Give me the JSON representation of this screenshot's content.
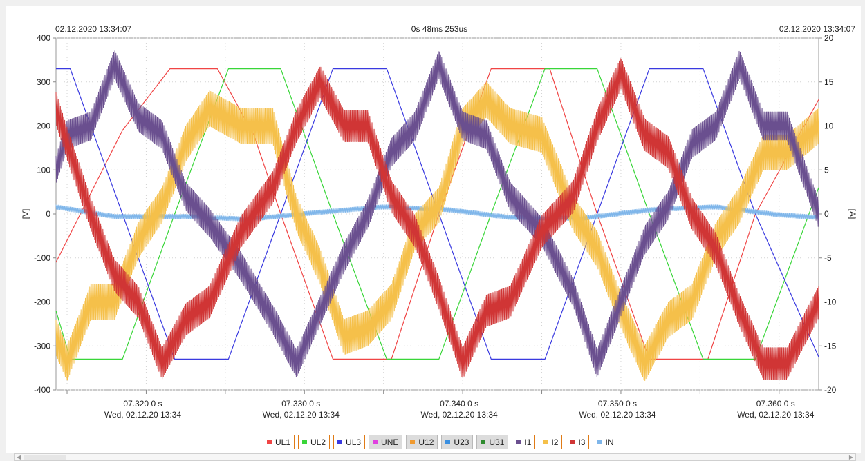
{
  "header": {
    "left_timestamp": "02.12.2020 13:34:07",
    "center_duration": "0s 48ms 253us",
    "right_timestamp": "02.12.2020 13:34:07"
  },
  "chart_data": {
    "type": "line",
    "xlim": [
      7.3143,
      7.3625
    ],
    "ylim_left": [
      -400,
      400
    ],
    "ylim_right": [
      -20,
      20
    ],
    "ylabel_left": "[V]",
    "ylabel_right": "[A]",
    "yticks_left": [
      "400",
      "300",
      "200",
      "100",
      "0",
      "-100",
      "-200",
      "-300",
      "-400"
    ],
    "yticks_right": [
      "20",
      "15",
      "10",
      "5",
      "0",
      "-5",
      "-10",
      "-15",
      "-20"
    ],
    "xticks": [
      {
        "x": 7.32,
        "line1": "07.320   0 s",
        "line2": "Wed, 02.12.20 13:34"
      },
      {
        "x": 7.33,
        "line1": "07.330   0 s",
        "line2": "Wed, 02.12.20 13:34"
      },
      {
        "x": 7.34,
        "line1": "07.340   0 s",
        "line2": "Wed, 02.12.20 13:34"
      },
      {
        "x": 7.35,
        "line1": "07.350   0 s",
        "line2": "Wed, 02.12.20 13:34"
      },
      {
        "x": 7.36,
        "line1": "07.360   0 s",
        "line2": "Wed, 02.12.20 13:34"
      }
    ],
    "grid": true,
    "series": [
      {
        "name": "UL1",
        "color": "#f04545",
        "axis": "left",
        "visible": true,
        "x": [
          7.3143,
          7.3185,
          7.3215,
          7.3245,
          7.3268,
          7.3285,
          7.3318,
          7.3355,
          7.3385,
          7.3418,
          7.3455,
          7.3485,
          7.3518,
          7.3555,
          7.3585,
          7.3625
        ],
        "y": [
          -110,
          190,
          330,
          330,
          180,
          0,
          -330,
          -330,
          0,
          330,
          330,
          0,
          -330,
          -330,
          0,
          260
        ]
      },
      {
        "name": "UL2",
        "color": "#39d639",
        "axis": "left",
        "visible": true,
        "x": [
          7.3143,
          7.3152,
          7.3185,
          7.3218,
          7.3252,
          7.3285,
          7.3318,
          7.3352,
          7.3385,
          7.3418,
          7.3452,
          7.3485,
          7.3518,
          7.3552,
          7.3585,
          7.3625
        ],
        "y": [
          -220,
          -330,
          -330,
          0,
          330,
          330,
          0,
          -330,
          -330,
          0,
          330,
          330,
          0,
          -330,
          -330,
          60
        ]
      },
      {
        "name": "UL3",
        "color": "#3a3ae0",
        "axis": "left",
        "visible": true,
        "x": [
          7.3143,
          7.3152,
          7.3185,
          7.3218,
          7.3252,
          7.3285,
          7.3318,
          7.3352,
          7.3385,
          7.3418,
          7.3452,
          7.3485,
          7.3518,
          7.3552,
          7.3585,
          7.3625
        ],
        "y": [
          330,
          330,
          0,
          -330,
          -330,
          0,
          330,
          330,
          0,
          -330,
          -330,
          0,
          330,
          330,
          0,
          -325
        ]
      },
      {
        "name": "UNE",
        "color": "#e040e0",
        "axis": "left",
        "visible": false,
        "x": [],
        "y": []
      },
      {
        "name": "U12",
        "color": "#f09a30",
        "axis": "left",
        "visible": false,
        "x": [],
        "y": []
      },
      {
        "name": "U23",
        "color": "#3a8fe0",
        "axis": "left",
        "visible": false,
        "x": [],
        "y": []
      },
      {
        "name": "U31",
        "color": "#2e8b2e",
        "axis": "left",
        "visible": false,
        "x": [],
        "y": []
      },
      {
        "name": "I1",
        "color": "#6a4f8f",
        "axis": "right",
        "visible": true,
        "ripple": 1.6,
        "x": [
          7.3143,
          7.315,
          7.3165,
          7.318,
          7.3195,
          7.321,
          7.3225,
          7.324,
          7.326,
          7.328,
          7.3295,
          7.331,
          7.3325,
          7.334,
          7.3355,
          7.337,
          7.3385,
          7.34,
          7.3415,
          7.343,
          7.345,
          7.347,
          7.3485,
          7.35,
          7.3515,
          7.353,
          7.3545,
          7.356,
          7.3575,
          7.359,
          7.3605,
          7.3625
        ],
        "y": [
          5,
          9,
          10,
          17,
          11,
          9,
          2,
          -1,
          -6,
          -12,
          -17,
          -11,
          -5,
          0,
          7,
          10,
          17,
          10,
          9,
          2,
          -2,
          -9,
          -17,
          -10,
          -3,
          1,
          8,
          10,
          17,
          10,
          10,
          0
        ]
      },
      {
        "name": "I2",
        "color": "#f5c04a",
        "axis": "right",
        "visible": true,
        "ripple": 2.0,
        "x": [
          7.3143,
          7.315,
          7.3165,
          7.318,
          7.3195,
          7.321,
          7.3225,
          7.324,
          7.326,
          7.328,
          7.3295,
          7.331,
          7.3325,
          7.334,
          7.3355,
          7.337,
          7.3385,
          7.34,
          7.3415,
          7.343,
          7.345,
          7.347,
          7.3485,
          7.35,
          7.3515,
          7.353,
          7.3545,
          7.356,
          7.3575,
          7.359,
          7.3605,
          7.3625
        ],
        "y": [
          -14,
          -17,
          -10,
          -10,
          -3,
          1,
          8,
          12,
          10,
          10,
          0,
          -6,
          -14,
          -13,
          -10,
          -2,
          1,
          10,
          13,
          10,
          9,
          0,
          -4,
          -11,
          -17,
          -12,
          -10,
          -3,
          1,
          7,
          7,
          10
        ]
      },
      {
        "name": "I3",
        "color": "#d03535",
        "axis": "right",
        "visible": true,
        "ripple": 1.8,
        "x": [
          7.3143,
          7.315,
          7.3165,
          7.318,
          7.3195,
          7.321,
          7.3225,
          7.324,
          7.326,
          7.328,
          7.3295,
          7.331,
          7.3325,
          7.334,
          7.3355,
          7.337,
          7.3385,
          7.34,
          7.3415,
          7.343,
          7.345,
          7.347,
          7.3485,
          7.35,
          7.3515,
          7.353,
          7.3545,
          7.356,
          7.3575,
          7.359,
          7.3605,
          7.3625
        ],
        "y": [
          12,
          8,
          0,
          -7,
          -10,
          -17,
          -12,
          -10,
          -2,
          3,
          10,
          15,
          10,
          10,
          2,
          -2,
          -9,
          -17,
          -11,
          -10,
          -2,
          2,
          10,
          16,
          9,
          7,
          0,
          -4,
          -11,
          -17,
          -17,
          -10
        ]
      },
      {
        "name": "IN",
        "color": "#7fb6ea",
        "axis": "right",
        "visible": true,
        "ripple": 0.25,
        "x": [
          7.3143,
          7.318,
          7.3225,
          7.3265,
          7.331,
          7.335,
          7.339,
          7.343,
          7.3475,
          7.352,
          7.356,
          7.36,
          7.3625
        ],
        "y": [
          0.8,
          -0.3,
          -0.3,
          -0.6,
          0.2,
          0.8,
          0.5,
          -0.4,
          -0.5,
          0.5,
          0.8,
          -0.1,
          -0.4
        ]
      }
    ]
  }
}
